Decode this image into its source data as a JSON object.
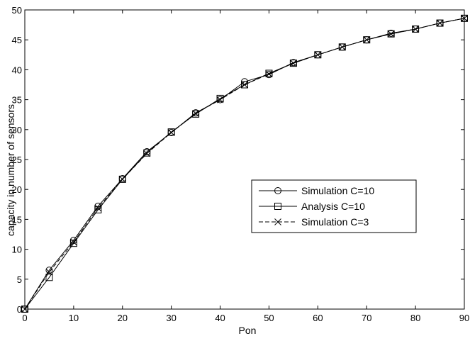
{
  "chart_data": {
    "type": "line",
    "title": "",
    "xlabel": "Pon",
    "ylabel": "capacity in number of sensors",
    "xlim": [
      0,
      90
    ],
    "ylim": [
      0,
      50
    ],
    "xticks": [
      0,
      10,
      20,
      30,
      40,
      50,
      60,
      70,
      80,
      90
    ],
    "yticks": [
      0,
      5,
      10,
      15,
      20,
      25,
      30,
      35,
      40,
      45,
      50
    ],
    "grid": false,
    "legend_position": "center-right",
    "x": [
      0,
      5,
      10,
      15,
      20,
      25,
      30,
      35,
      40,
      45,
      50,
      55,
      60,
      65,
      70,
      75,
      80,
      85,
      90
    ],
    "series": [
      {
        "name": "Simulation C=10",
        "marker": "circle",
        "line": "solid",
        "values": [
          0,
          6.5,
          11.5,
          17.2,
          21.8,
          26.3,
          29.5,
          32.8,
          35.0,
          38.0,
          39.2,
          41.2,
          42.5,
          43.8,
          45.0,
          46.1,
          46.8,
          47.8,
          48.6
        ]
      },
      {
        "name": "Analysis C=10",
        "marker": "square",
        "line": "solid",
        "values": [
          0,
          5.3,
          11.0,
          16.6,
          21.7,
          26.1,
          29.6,
          32.6,
          35.2,
          37.5,
          39.4,
          41.1,
          42.5,
          43.8,
          45.0,
          46.0,
          46.8,
          47.8,
          48.6
        ]
      },
      {
        "name": "Simulation C=3",
        "marker": "x",
        "line": "dashed",
        "values": [
          0,
          6.2,
          11.2,
          16.9,
          21.7,
          26.0,
          29.5,
          32.7,
          35.0,
          37.5,
          39.3,
          41.1,
          42.5,
          43.8,
          45.0,
          46.0,
          46.8,
          47.8,
          48.6
        ]
      }
    ]
  }
}
